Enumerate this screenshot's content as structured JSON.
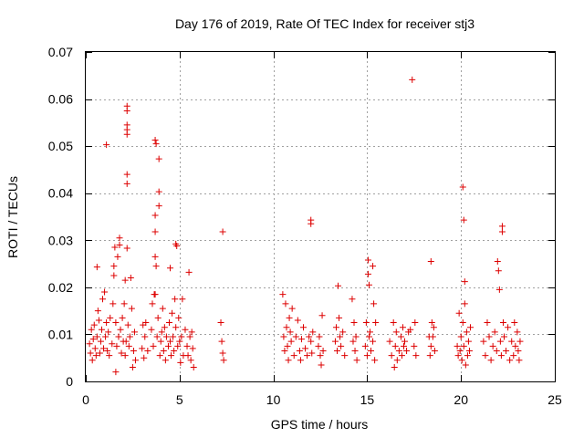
{
  "chart_data": {
    "type": "scatter",
    "title": "Day 176 of 2019, Rate Of TEC Index for receiver stj3",
    "xlabel": "GPS time / hours",
    "ylabel": "ROTI / TECUs",
    "xlim": [
      0,
      25
    ],
    "ylim": [
      0,
      0.07
    ],
    "xticks": [
      0,
      5,
      10,
      15,
      20,
      25
    ],
    "xtick_labels": [
      "0",
      "5",
      "10",
      "15",
      "20",
      "25"
    ],
    "yticks": [
      0,
      0.01,
      0.02,
      0.03,
      0.04,
      0.05,
      0.06,
      0.07
    ],
    "ytick_labels": [
      "0",
      "0.01",
      "0.02",
      "0.03",
      "0.04",
      "0.05",
      "0.06",
      "0.07"
    ],
    "grid": true,
    "marker": "+",
    "color": "#dd0000",
    "series": [
      {
        "name": "ROTI",
        "points": [
          [
            0.2,
            0.008
          ],
          [
            0.25,
            0.006
          ],
          [
            0.3,
            0.011
          ],
          [
            0.35,
            0.0045
          ],
          [
            0.4,
            0.009
          ],
          [
            0.45,
            0.012
          ],
          [
            0.5,
            0.007
          ],
          [
            0.55,
            0.0055
          ],
          [
            0.6,
            0.0095
          ],
          [
            0.6,
            0.0243
          ],
          [
            0.65,
            0.015
          ],
          [
            0.7,
            0.013
          ],
          [
            0.75,
            0.006
          ],
          [
            0.8,
            0.0085
          ],
          [
            0.85,
            0.011
          ],
          [
            0.9,
            0.0175
          ],
          [
            0.95,
            0.007
          ],
          [
            1.0,
            0.019
          ],
          [
            1.05,
            0.0095
          ],
          [
            1.1,
            0.0503
          ],
          [
            1.1,
            0.0125
          ],
          [
            1.15,
            0.0065
          ],
          [
            1.2,
            0.0105
          ],
          [
            1.25,
            0.0055
          ],
          [
            1.3,
            0.0135
          ],
          [
            1.4,
            0.008
          ],
          [
            1.45,
            0.0165
          ],
          [
            1.5,
            0.0225
          ],
          [
            1.5,
            0.0245
          ],
          [
            1.55,
            0.0285
          ],
          [
            1.6,
            0.0125
          ],
          [
            1.6,
            0.002
          ],
          [
            1.65,
            0.0075
          ],
          [
            1.7,
            0.0265
          ],
          [
            1.75,
            0.0095
          ],
          [
            1.8,
            0.029
          ],
          [
            1.8,
            0.0305
          ],
          [
            1.85,
            0.011
          ],
          [
            1.9,
            0.006
          ],
          [
            1.95,
            0.0135
          ],
          [
            2.0,
            0.0085
          ],
          [
            2.05,
            0.0165
          ],
          [
            2.1,
            0.0215
          ],
          [
            2.1,
            0.0055
          ],
          [
            2.15,
            0.0085
          ],
          [
            2.2,
            0.0585
          ],
          [
            2.2,
            0.0575
          ],
          [
            2.2,
            0.0545
          ],
          [
            2.2,
            0.0535
          ],
          [
            2.2,
            0.0525
          ],
          [
            2.2,
            0.044
          ],
          [
            2.2,
            0.042
          ],
          [
            2.2,
            0.0283
          ],
          [
            2.25,
            0.012
          ],
          [
            2.3,
            0.0075
          ],
          [
            2.35,
            0.0095
          ],
          [
            2.4,
            0.022
          ],
          [
            2.45,
            0.0155
          ],
          [
            2.5,
            0.003
          ],
          [
            2.55,
            0.0065
          ],
          [
            2.6,
            0.0105
          ],
          [
            2.65,
            0.0045
          ],
          [
            3.0,
            0.007
          ],
          [
            3.05,
            0.012
          ],
          [
            3.1,
            0.005
          ],
          [
            3.15,
            0.0095
          ],
          [
            3.2,
            0.0125
          ],
          [
            3.3,
            0.0065
          ],
          [
            3.5,
            0.011
          ],
          [
            3.55,
            0.0165
          ],
          [
            3.6,
            0.0075
          ],
          [
            3.65,
            0.0185
          ],
          [
            3.7,
            0.0513
          ],
          [
            3.7,
            0.0353
          ],
          [
            3.7,
            0.0318
          ],
          [
            3.7,
            0.0265
          ],
          [
            3.7,
            0.0185
          ],
          [
            3.75,
            0.0505
          ],
          [
            3.75,
            0.0245
          ],
          [
            3.8,
            0.0095
          ],
          [
            3.85,
            0.0135
          ],
          [
            3.9,
            0.0473
          ],
          [
            3.9,
            0.0403
          ],
          [
            3.9,
            0.0373
          ],
          [
            3.95,
            0.0055
          ],
          [
            4.0,
            0.0085
          ],
          [
            4.05,
            0.0105
          ],
          [
            4.1,
            0.0155
          ],
          [
            4.15,
            0.0065
          ],
          [
            4.2,
            0.0115
          ],
          [
            4.25,
            0.0045
          ],
          [
            4.3,
            0.0095
          ],
          [
            4.4,
            0.0075
          ],
          [
            4.45,
            0.0125
          ],
          [
            4.5,
            0.0085
          ],
          [
            4.5,
            0.0241
          ],
          [
            4.55,
            0.0055
          ],
          [
            4.6,
            0.0145
          ],
          [
            4.65,
            0.0095
          ],
          [
            4.7,
            0.0065
          ],
          [
            4.75,
            0.0175
          ],
          [
            4.8,
            0.0115
          ],
          [
            4.8,
            0.0292
          ],
          [
            4.85,
            0.0288
          ],
          [
            4.9,
            0.0075
          ],
          [
            4.95,
            0.0135
          ],
          [
            5.0,
            0.0085
          ],
          [
            5.05,
            0.004
          ],
          [
            5.1,
            0.0095
          ],
          [
            5.15,
            0.0175
          ],
          [
            5.2,
            0.0055
          ],
          [
            5.3,
            0.011
          ],
          [
            5.4,
            0.0075
          ],
          [
            5.45,
            0.0055
          ],
          [
            5.5,
            0.0232
          ],
          [
            5.55,
            0.0095
          ],
          [
            5.6,
            0.0045
          ],
          [
            5.65,
            0.0105
          ],
          [
            5.7,
            0.007
          ],
          [
            5.75,
            0.003
          ],
          [
            7.2,
            0.0125
          ],
          [
            7.25,
            0.0085
          ],
          [
            7.3,
            0.006
          ],
          [
            7.3,
            0.0318
          ],
          [
            7.35,
            0.0045
          ],
          [
            10.5,
            0.0185
          ],
          [
            10.55,
            0.0095
          ],
          [
            10.6,
            0.0065
          ],
          [
            10.65,
            0.0165
          ],
          [
            10.7,
            0.0115
          ],
          [
            10.75,
            0.0075
          ],
          [
            10.8,
            0.0045
          ],
          [
            10.85,
            0.0135
          ],
          [
            10.9,
            0.0105
          ],
          [
            10.95,
            0.0085
          ],
          [
            11.0,
            0.0155
          ],
          [
            11.1,
            0.0055
          ],
          [
            11.2,
            0.0095
          ],
          [
            11.3,
            0.013
          ],
          [
            11.4,
            0.0065
          ],
          [
            11.45,
            0.0045
          ],
          [
            11.5,
            0.009
          ],
          [
            11.6,
            0.0115
          ],
          [
            11.7,
            0.007
          ],
          [
            11.8,
            0.0055
          ],
          [
            11.9,
            0.0095
          ],
          [
            12.0,
            0.0343
          ],
          [
            12.0,
            0.0335
          ],
          [
            12.0,
            0.0085
          ],
          [
            12.05,
            0.006
          ],
          [
            12.1,
            0.0105
          ],
          [
            12.4,
            0.0075
          ],
          [
            12.45,
            0.0095
          ],
          [
            12.5,
            0.0055
          ],
          [
            12.55,
            0.0035
          ],
          [
            12.6,
            0.014
          ],
          [
            12.65,
            0.0065
          ],
          [
            13.3,
            0.0085
          ],
          [
            13.35,
            0.0115
          ],
          [
            13.4,
            0.0065
          ],
          [
            13.45,
            0.0203
          ],
          [
            13.5,
            0.0135
          ],
          [
            13.55,
            0.0095
          ],
          [
            13.6,
            0.0075
          ],
          [
            13.7,
            0.0105
          ],
          [
            13.8,
            0.0055
          ],
          [
            14.2,
            0.0175
          ],
          [
            14.25,
            0.0085
          ],
          [
            14.3,
            0.0125
          ],
          [
            14.35,
            0.0065
          ],
          [
            14.4,
            0.0095
          ],
          [
            14.45,
            0.0045
          ],
          [
            14.9,
            0.0075
          ],
          [
            14.95,
            0.0125
          ],
          [
            15.0,
            0.0055
          ],
          [
            15.05,
            0.0258
          ],
          [
            15.05,
            0.0228
          ],
          [
            15.1,
            0.0205
          ],
          [
            15.1,
            0.0095
          ],
          [
            15.15,
            0.0105
          ],
          [
            15.2,
            0.0065
          ],
          [
            15.3,
            0.0245
          ],
          [
            15.3,
            0.0085
          ],
          [
            15.35,
            0.0165
          ],
          [
            15.4,
            0.0045
          ],
          [
            15.45,
            0.0125
          ],
          [
            16.2,
            0.0085
          ],
          [
            16.3,
            0.0055
          ],
          [
            16.4,
            0.0125
          ],
          [
            16.45,
            0.003
          ],
          [
            16.5,
            0.0075
          ],
          [
            16.55,
            0.0105
          ],
          [
            16.6,
            0.0045
          ],
          [
            16.7,
            0.0065
          ],
          [
            16.8,
            0.0095
          ],
          [
            16.85,
            0.0055
          ],
          [
            16.9,
            0.0115
          ],
          [
            16.95,
            0.0075
          ],
          [
            17.0,
            0.0085
          ],
          [
            17.1,
            0.0065
          ],
          [
            17.2,
            0.0105
          ],
          [
            17.3,
            0.011
          ],
          [
            17.4,
            0.0641
          ],
          [
            17.5,
            0.0075
          ],
          [
            17.55,
            0.0125
          ],
          [
            17.6,
            0.0055
          ],
          [
            18.3,
            0.0095
          ],
          [
            18.35,
            0.0055
          ],
          [
            18.4,
            0.0255
          ],
          [
            18.4,
            0.0075
          ],
          [
            18.45,
            0.0125
          ],
          [
            18.5,
            0.0095
          ],
          [
            18.55,
            0.0115
          ],
          [
            18.6,
            0.0065
          ],
          [
            19.8,
            0.0075
          ],
          [
            19.85,
            0.0055
          ],
          [
            19.9,
            0.0145
          ],
          [
            19.95,
            0.0065
          ],
          [
            20.0,
            0.0095
          ],
          [
            20.05,
            0.0045
          ],
          [
            20.1,
            0.0413
          ],
          [
            20.1,
            0.0125
          ],
          [
            20.15,
            0.0343
          ],
          [
            20.15,
            0.0075
          ],
          [
            20.2,
            0.0212
          ],
          [
            20.2,
            0.0165
          ],
          [
            20.25,
            0.0035
          ],
          [
            20.3,
            0.0105
          ],
          [
            20.35,
            0.0055
          ],
          [
            20.4,
            0.0085
          ],
          [
            20.45,
            0.0065
          ],
          [
            20.5,
            0.0115
          ],
          [
            21.2,
            0.0085
          ],
          [
            21.3,
            0.0055
          ],
          [
            21.4,
            0.0125
          ],
          [
            21.5,
            0.0095
          ],
          [
            21.6,
            0.0045
          ],
          [
            21.7,
            0.0075
          ],
          [
            21.8,
            0.0105
          ],
          [
            21.9,
            0.0065
          ],
          [
            21.95,
            0.0255
          ],
          [
            22.0,
            0.0235
          ],
          [
            22.05,
            0.0195
          ],
          [
            22.1,
            0.0085
          ],
          [
            22.15,
            0.0055
          ],
          [
            22.2,
            0.033
          ],
          [
            22.2,
            0.0318
          ],
          [
            22.25,
            0.0125
          ],
          [
            22.3,
            0.0095
          ],
          [
            22.4,
            0.0065
          ],
          [
            22.5,
            0.0115
          ],
          [
            22.6,
            0.0045
          ],
          [
            22.7,
            0.0085
          ],
          [
            22.8,
            0.0055
          ],
          [
            22.85,
            0.0125
          ],
          [
            22.9,
            0.0075
          ],
          [
            23.0,
            0.0105
          ],
          [
            23.05,
            0.0065
          ],
          [
            23.1,
            0.0045
          ],
          [
            23.15,
            0.0085
          ]
        ]
      }
    ]
  }
}
